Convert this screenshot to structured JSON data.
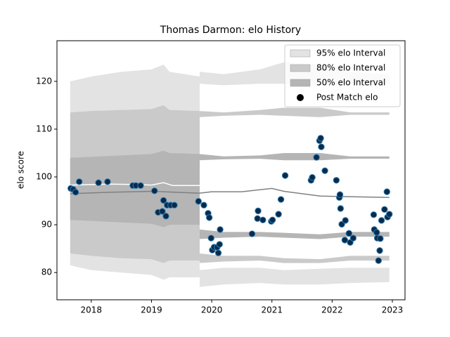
{
  "chart_data": {
    "type": "interval_scatter",
    "title": "Thomas Darmon: elo History",
    "y_label": "elo score",
    "xlim": [
      2017.43,
      2023.21
    ],
    "xticks": [
      2018,
      2019,
      2020,
      2021,
      2022,
      2023
    ],
    "ylim": [
      74.3,
      128.5
    ],
    "yticks": [
      80,
      90,
      100,
      110,
      120
    ],
    "legend": "upper right",
    "bands": [
      {
        "name": "95% elo Interval",
        "color": "#e3e3e3",
        "pieces": [
          {
            "x": [
              2017.65,
              2018.0,
              2018.5,
              2019.0,
              2019.2,
              2019.3,
              2019.8
            ],
            "lower": [
              81.5,
              80.5,
              80,
              79.5,
              78.5,
              79,
              79
            ],
            "upper": [
              120,
              121,
              122,
              122.5,
              123.5,
              122,
              121
            ]
          },
          {
            "x": [
              2019.8,
              2020.2,
              2020.8,
              2021.2,
              2021.8,
              2022.3,
              2022.95
            ],
            "lower": [
              119.5,
              119.2,
              119.5,
              119.5,
              119,
              119.5,
              119.5
            ],
            "upper": [
              122,
              121.5,
              122.5,
              124,
              123.5,
              122,
              121.5
            ]
          },
          {
            "x": [
              2019.8,
              2020.2,
              2020.8,
              2021.2,
              2021.8,
              2022.3,
              2022.95
            ],
            "lower": [
              77,
              77.5,
              77.8,
              77.5,
              77.5,
              77.8,
              78
            ],
            "upper": [
              80.5,
              81,
              81,
              80.5,
              80.8,
              81,
              81
            ]
          }
        ]
      },
      {
        "name": "80% elo Interval",
        "color": "#cacaca",
        "pieces": [
          {
            "x": [
              2017.65,
              2018.0,
              2018.5,
              2019.0,
              2019.2,
              2019.3,
              2019.8
            ],
            "lower": [
              84,
              83.5,
              83,
              82.8,
              82,
              82.5,
              82.5
            ],
            "upper": [
              113.5,
              113.8,
              114,
              114.2,
              115,
              114,
              113.8
            ]
          },
          {
            "x": [
              2019.8,
              2020.2,
              2020.8,
              2021.2,
              2021.8,
              2022.3,
              2022.95
            ],
            "lower": [
              112.5,
              112.8,
              113,
              112.8,
              112.5,
              113,
              113
            ],
            "upper": [
              113.8,
              113.5,
              114,
              114.5,
              114.5,
              113.5,
              113.5
            ]
          },
          {
            "x": [
              2019.8,
              2020.2,
              2020.8,
              2021.2,
              2021.8,
              2022.3,
              2022.95
            ],
            "lower": [
              82,
              82.3,
              82.5,
              82,
              82,
              82.5,
              82.5
            ],
            "upper": [
              84,
              83.5,
              83.5,
              83,
              82.8,
              83.5,
              83.5
            ]
          }
        ]
      },
      {
        "name": "50% elo Interval",
        "color": "#b5b5b5",
        "pieces": [
          {
            "x": [
              2017.65,
              2018.0,
              2018.5,
              2019.0,
              2019.2,
              2019.3,
              2019.8
            ],
            "lower": [
              91,
              90.8,
              90.5,
              90.2,
              89.5,
              90,
              90
            ],
            "upper": [
              104,
              104.2,
              104.5,
              104.8,
              105.5,
              105,
              104.8
            ]
          },
          {
            "x": [
              2019.8,
              2020.2,
              2020.8,
              2021.2,
              2021.8,
              2022.3,
              2022.95
            ],
            "lower": [
              103.5,
              103.7,
              103.8,
              103.5,
              103.5,
              103.8,
              103.8
            ],
            "upper": [
              104.8,
              104.3,
              104.5,
              105,
              105,
              104.3,
              104.3
            ]
          },
          {
            "x": [
              2019.8,
              2020.2,
              2020.8,
              2021.2,
              2021.8,
              2022.3,
              2022.95
            ],
            "lower": [
              87,
              87.3,
              87.5,
              87.3,
              87,
              87.5,
              87.5
            ],
            "upper": [
              89,
              88.5,
              88.5,
              88.3,
              88,
              88.5,
              88.5
            ]
          }
        ]
      }
    ],
    "lines": [
      {
        "color": "#ffffff",
        "x": [
          2017.65,
          2018.3,
          2018.8,
          2019.0,
          2019.2,
          2019.35,
          2019.8
        ],
        "values": [
          98.3,
          98.5,
          98.4,
          98.3,
          98.8,
          98.2,
          98.2
        ]
      },
      {
        "color": "#808080",
        "x": [
          2017.65,
          2018.3,
          2019.0,
          2019.8,
          2020.0,
          2020.5,
          2021.0,
          2021.2,
          2021.8,
          2022.2,
          2022.95
        ],
        "values": [
          96.5,
          96.8,
          97.0,
          96.6,
          96.9,
          96.9,
          97.6,
          97.0,
          96.0,
          95.9,
          95.7
        ]
      }
    ],
    "series": [
      {
        "name": "Post Match elo",
        "color": "#0b2a4a",
        "edgecolor": "#2a7fb8",
        "x": [
          2017.66,
          2017.7,
          2017.74,
          2017.8,
          2018.12,
          2018.27,
          2018.69,
          2018.74,
          2018.82,
          2019.05,
          2019.11,
          2019.18,
          2019.2,
          2019.24,
          2019.26,
          2019.32,
          2019.38,
          2019.78,
          2019.87,
          2019.94,
          2019.96,
          2019.99,
          2020.01,
          2020.04,
          2020.09,
          2020.11,
          2020.13,
          2020.14,
          2020.67,
          2020.76,
          2020.77,
          2020.85,
          2020.99,
          2021.01,
          2021.11,
          2021.15,
          2021.22,
          2021.65,
          2021.67,
          2021.74,
          2021.79,
          2021.81,
          2021.82,
          2021.88,
          2022.07,
          2022.12,
          2022.13,
          2022.14,
          2022.16,
          2022.22,
          2022.21,
          2022.28,
          2022.3,
          2022.35,
          2022.69,
          2022.7,
          2022.74,
          2022.75,
          2022.8,
          2022.79,
          2022.77,
          2022.82,
          2022.87,
          2022.91,
          2022.92,
          2022.95
        ],
        "values": [
          97.6,
          97.4,
          96.8,
          99.0,
          98.8,
          99.0,
          98.2,
          98.2,
          98.2,
          97.1,
          92.6,
          92.8,
          95.1,
          91.8,
          94.1,
          94.1,
          94.1,
          94.9,
          94.1,
          92.4,
          91.5,
          87.2,
          84.7,
          85.3,
          85.3,
          84.1,
          85.9,
          89.0,
          88.1,
          91.3,
          92.9,
          91.0,
          90.7,
          91.0,
          92.2,
          95.3,
          100.3,
          99.3,
          99.9,
          104.1,
          107.6,
          108.1,
          106.3,
          101.3,
          99.3,
          95.7,
          96.3,
          93.4,
          90.1,
          90.9,
          86.8,
          88.2,
          86.3,
          87.2,
          92.1,
          89.0,
          88.4,
          87.2,
          87.1,
          84.6,
          82.5,
          90.9,
          93.2,
          96.9,
          91.6,
          92.2
        ]
      }
    ]
  }
}
